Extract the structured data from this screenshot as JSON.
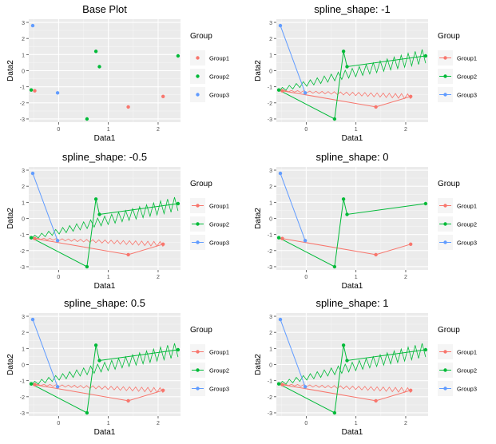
{
  "colors": {
    "Group1": "#F8766D",
    "Group2": "#00BA38",
    "Group3": "#619CFF",
    "panel_bg": "#EBEBEB",
    "grid_major": "#FFFFFF",
    "grid_minor": "#F5F5F5"
  },
  "chart_data": [
    {
      "type": "scatter",
      "title": "Base Plot",
      "xlabel": "Data1",
      "ylabel": "Data2",
      "xlim": [
        -0.6,
        2.45
      ],
      "ylim": [
        -3.2,
        3.2
      ],
      "x_ticks": [
        "0",
        "1",
        "2"
      ],
      "y_ticks": [
        "3",
        "2",
        "1",
        "0",
        "-1",
        "-2",
        "-3"
      ],
      "legend": {
        "title": "Group",
        "entries": [
          "Group1",
          "Group2",
          "Group3"
        ],
        "placement": "right"
      },
      "spline_shape": null,
      "series": [
        {
          "name": "Group1",
          "points": [
            [
              -0.48,
              -1.25
            ],
            [
              1.4,
              -2.25
            ],
            [
              2.1,
              -1.6
            ]
          ]
        },
        {
          "name": "Group2",
          "points": [
            [
              -0.55,
              -1.2
            ],
            [
              0.57,
              -3.0
            ],
            [
              0.75,
              1.2
            ],
            [
              0.82,
              0.25
            ],
            [
              2.4,
              0.92
            ]
          ]
        },
        {
          "name": "Group3",
          "points": [
            [
              -0.52,
              2.8
            ],
            [
              -0.02,
              -1.38
            ]
          ]
        }
      ]
    },
    {
      "type": "line",
      "title": "spline_shape: -1",
      "xlabel": "Data1",
      "ylabel": "Data2",
      "xlim": [
        -0.6,
        2.45
      ],
      "ylim": [
        -3.2,
        3.2
      ],
      "x_ticks": [
        "0",
        "1",
        "2"
      ],
      "y_ticks": [
        "3",
        "2",
        "1",
        "0",
        "-1",
        "-2",
        "-3"
      ],
      "legend": {
        "title": "Group",
        "entries": [
          "Group1",
          "Group2",
          "Group3"
        ],
        "placement": "right"
      },
      "spline_shape": -1,
      "series": [
        {
          "name": "Group1",
          "points": [
            [
              -0.48,
              -1.25
            ],
            [
              1.4,
              -2.25
            ],
            [
              2.1,
              -1.6
            ]
          ]
        },
        {
          "name": "Group2",
          "points": [
            [
              -0.55,
              -1.2
            ],
            [
              0.57,
              -3.0
            ],
            [
              0.75,
              1.2
            ],
            [
              0.82,
              0.25
            ],
            [
              2.4,
              0.92
            ]
          ]
        },
        {
          "name": "Group3",
          "points": [
            [
              -0.52,
              2.8
            ],
            [
              -0.02,
              -1.38
            ]
          ]
        }
      ]
    },
    {
      "type": "line",
      "title": "spline_shape: -0.5",
      "xlabel": "Data1",
      "ylabel": "Data2",
      "xlim": [
        -0.6,
        2.45
      ],
      "ylim": [
        -3.2,
        3.2
      ],
      "x_ticks": [
        "0",
        "1",
        "2"
      ],
      "y_ticks": [
        "3",
        "2",
        "1",
        "0",
        "-1",
        "-2",
        "-3"
      ],
      "legend": {
        "title": "Group",
        "entries": [
          "Group1",
          "Group2",
          "Group3"
        ],
        "placement": "right"
      },
      "spline_shape": -0.5,
      "series": [
        {
          "name": "Group1",
          "points": [
            [
              -0.48,
              -1.25
            ],
            [
              1.4,
              -2.25
            ],
            [
              2.1,
              -1.6
            ]
          ]
        },
        {
          "name": "Group2",
          "points": [
            [
              -0.55,
              -1.2
            ],
            [
              0.57,
              -3.0
            ],
            [
              0.75,
              1.2
            ],
            [
              0.82,
              0.25
            ],
            [
              2.4,
              0.92
            ]
          ]
        },
        {
          "name": "Group3",
          "points": [
            [
              -0.52,
              2.8
            ],
            [
              -0.02,
              -1.38
            ]
          ]
        }
      ]
    },
    {
      "type": "line",
      "title": "spline_shape: 0",
      "xlabel": "Data1",
      "ylabel": "Data2",
      "xlim": [
        -0.6,
        2.45
      ],
      "ylim": [
        -3.2,
        3.2
      ],
      "x_ticks": [
        "0",
        "1",
        "2"
      ],
      "y_ticks": [
        "3",
        "2",
        "1",
        "0",
        "-1",
        "-2",
        "-3"
      ],
      "legend": {
        "title": "Group",
        "entries": [
          "Group1",
          "Group2",
          "Group3"
        ],
        "placement": "right"
      },
      "spline_shape": 0,
      "series": [
        {
          "name": "Group1",
          "points": [
            [
              -0.48,
              -1.25
            ],
            [
              1.4,
              -2.25
            ],
            [
              2.1,
              -1.6
            ]
          ]
        },
        {
          "name": "Group2",
          "points": [
            [
              -0.55,
              -1.2
            ],
            [
              0.57,
              -3.0
            ],
            [
              0.75,
              1.2
            ],
            [
              0.82,
              0.25
            ],
            [
              2.4,
              0.92
            ]
          ]
        },
        {
          "name": "Group3",
          "points": [
            [
              -0.52,
              2.8
            ],
            [
              -0.02,
              -1.38
            ]
          ]
        }
      ]
    },
    {
      "type": "line",
      "title": "spline_shape: 0.5",
      "xlabel": "Data1",
      "ylabel": "Data2",
      "xlim": [
        -0.6,
        2.45
      ],
      "ylim": [
        -3.2,
        3.2
      ],
      "x_ticks": [
        "0",
        "1",
        "2"
      ],
      "y_ticks": [
        "3",
        "2",
        "1",
        "0",
        "-1",
        "-2",
        "-3"
      ],
      "legend": {
        "title": "Group",
        "entries": [
          "Group1",
          "Group2",
          "Group3"
        ],
        "placement": "right"
      },
      "spline_shape": 0.5,
      "series": [
        {
          "name": "Group1",
          "points": [
            [
              -0.48,
              -1.25
            ],
            [
              1.4,
              -2.25
            ],
            [
              2.1,
              -1.6
            ]
          ]
        },
        {
          "name": "Group2",
          "points": [
            [
              -0.55,
              -1.2
            ],
            [
              0.57,
              -3.0
            ],
            [
              0.75,
              1.2
            ],
            [
              0.82,
              0.25
            ],
            [
              2.4,
              0.92
            ]
          ]
        },
        {
          "name": "Group3",
          "points": [
            [
              -0.52,
              2.8
            ],
            [
              -0.02,
              -1.38
            ]
          ]
        }
      ]
    },
    {
      "type": "line",
      "title": "spline_shape: 1",
      "xlabel": "Data1",
      "ylabel": "Data2",
      "xlim": [
        -0.6,
        2.45
      ],
      "ylim": [
        -3.2,
        3.2
      ],
      "x_ticks": [
        "0",
        "1",
        "2"
      ],
      "y_ticks": [
        "3",
        "2",
        "1",
        "0",
        "-1",
        "-2",
        "-3"
      ],
      "legend": {
        "title": "Group",
        "entries": [
          "Group1",
          "Group2",
          "Group3"
        ],
        "placement": "right"
      },
      "spline_shape": 1,
      "series": [
        {
          "name": "Group1",
          "points": [
            [
              -0.48,
              -1.25
            ],
            [
              1.4,
              -2.25
            ],
            [
              2.1,
              -1.6
            ]
          ]
        },
        {
          "name": "Group2",
          "points": [
            [
              -0.55,
              -1.2
            ],
            [
              0.57,
              -3.0
            ],
            [
              0.75,
              1.2
            ],
            [
              0.82,
              0.25
            ],
            [
              2.4,
              0.92
            ]
          ]
        },
        {
          "name": "Group3",
          "points": [
            [
              -0.52,
              2.8
            ],
            [
              -0.02,
              -1.38
            ]
          ]
        }
      ]
    }
  ]
}
